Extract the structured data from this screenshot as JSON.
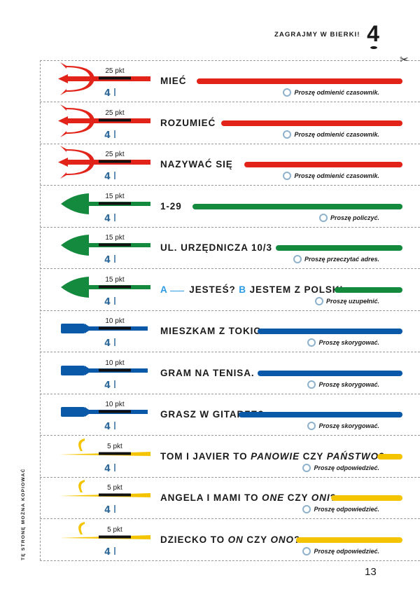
{
  "header": {
    "title": "ZAGRAJMY W BIERKI!",
    "chapter": "4"
  },
  "side_note": "TĘ STRONĘ MOŻNA KOPIOWAĆ",
  "page_number": "13",
  "icons": {
    "scissors": "scissors-icon",
    "stick_number": "4"
  },
  "colors": {
    "red": "#e2231a",
    "green": "#138a3d",
    "blue": "#0a58a8",
    "yellow": "#f5c400"
  },
  "cards": [
    {
      "kind": "trident",
      "color": "red",
      "points": "25 pkt",
      "segments": [
        {
          "t": "MIEĆ"
        }
      ],
      "instruction": "Proszę odmienić czasownik."
    },
    {
      "kind": "trident",
      "color": "red",
      "points": "25 pkt",
      "segments": [
        {
          "t": "ROZUMIEĆ"
        }
      ],
      "instruction": "Proszę odmienić czasownik."
    },
    {
      "kind": "trident",
      "color": "red",
      "points": "25 pkt",
      "segments": [
        {
          "t": "NAZYWAĆ SIĘ"
        }
      ],
      "instruction": "Proszę odmienić czasownik."
    },
    {
      "kind": "spear",
      "color": "green",
      "points": "15 pkt",
      "segments": [
        {
          "t": "1-29"
        }
      ],
      "instruction": "Proszę policzyć."
    },
    {
      "kind": "spear",
      "color": "green",
      "points": "15 pkt",
      "segments": [
        {
          "t": "UL. URZĘDNICZA 10/3"
        }
      ],
      "instruction": "Proszę przeczytać adres."
    },
    {
      "kind": "spear",
      "color": "green",
      "points": "15 pkt",
      "segments": [
        {
          "t": "A",
          "s": "blue"
        },
        {
          "t": "",
          "s": "blank"
        },
        {
          "t": " JESTEŚ? "
        },
        {
          "t": "B",
          "s": "blue"
        },
        {
          "t": " JESTEM Z POLSKI."
        }
      ],
      "instruction": "Proszę uzupełnić."
    },
    {
      "kind": "sword",
      "color": "blue",
      "points": "10 pkt",
      "segments": [
        {
          "t": "MIESZKAM Z TOKIO."
        }
      ],
      "instruction": "Proszę skorygować."
    },
    {
      "kind": "sword",
      "color": "blue",
      "points": "10 pkt",
      "segments": [
        {
          "t": "GRAM NA TENISA."
        }
      ],
      "instruction": "Proszę skorygować."
    },
    {
      "kind": "sword",
      "color": "blue",
      "points": "10 pkt",
      "segments": [
        {
          "t": "GRASZ W GITARZE?"
        }
      ],
      "instruction": "Proszę skorygować."
    },
    {
      "kind": "hook",
      "color": "yellow",
      "points": "5 pkt",
      "segments": [
        {
          "t": "TOM I JAVIER TO "
        },
        {
          "t": "PANOWIE",
          "s": "i"
        },
        {
          "t": " CZY "
        },
        {
          "t": "PAŃSTWO",
          "s": "i"
        },
        {
          "t": "?"
        }
      ],
      "instruction": "Proszę odpowiedzieć."
    },
    {
      "kind": "hook",
      "color": "yellow",
      "points": "5 pkt",
      "segments": [
        {
          "t": "ANGELA I MAMI TO "
        },
        {
          "t": "ONE",
          "s": "i"
        },
        {
          "t": " CZY "
        },
        {
          "t": "ONI",
          "s": "i"
        },
        {
          "t": "?"
        }
      ],
      "instruction": "Proszę odpowiedzieć."
    },
    {
      "kind": "hook",
      "color": "yellow",
      "points": "5 pkt",
      "segments": [
        {
          "t": "DZIECKO TO "
        },
        {
          "t": "ON",
          "s": "i"
        },
        {
          "t": " CZY "
        },
        {
          "t": "ONO",
          "s": "i"
        },
        {
          "t": "?"
        }
      ],
      "instruction": "Proszę odpowiedzieć."
    }
  ]
}
